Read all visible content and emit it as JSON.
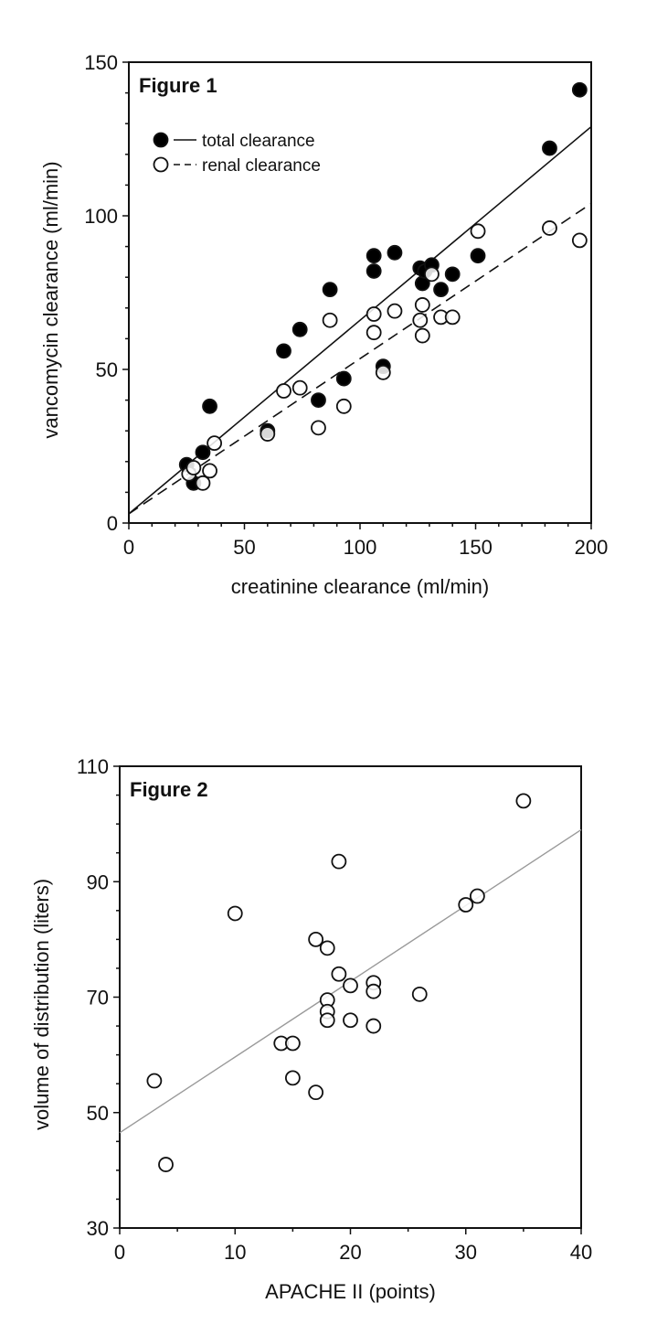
{
  "chart_data": [
    {
      "type": "scatter",
      "title": "Figure 1",
      "xlabel": "creatinine clearance (ml/min)",
      "ylabel": "vancomycin clearance (ml/min)",
      "xlim": [
        0,
        200
      ],
      "ylim": [
        0,
        150
      ],
      "xticks": [
        0,
        50,
        100,
        150,
        200
      ],
      "yticks": [
        0,
        50,
        100,
        150
      ],
      "xminor": 10,
      "yminor": 10,
      "grid": false,
      "legend_position": "top-left",
      "series": [
        {
          "name": "total clearance",
          "marker": "filled-circle",
          "line": "solid",
          "fit": [
            [
              0,
              3
            ],
            [
              200,
              129
            ]
          ],
          "points": [
            [
              25,
              19
            ],
            [
              28,
              13
            ],
            [
              32,
              23
            ],
            [
              35,
              38
            ],
            [
              60,
              30
            ],
            [
              67,
              56
            ],
            [
              74,
              63
            ],
            [
              87,
              76
            ],
            [
              82,
              40
            ],
            [
              93,
              47
            ],
            [
              106,
              87
            ],
            [
              106,
              82
            ],
            [
              110,
              51
            ],
            [
              115,
              88
            ],
            [
              126,
              83
            ],
            [
              127,
              78
            ],
            [
              128,
              82
            ],
            [
              131,
              84
            ],
            [
              135,
              76
            ],
            [
              140,
              81
            ],
            [
              151,
              87
            ],
            [
              182,
              122
            ],
            [
              195,
              141
            ]
          ]
        },
        {
          "name": "renal clearance",
          "marker": "open-circle",
          "line": "dashed",
          "fit": [
            [
              0,
              3
            ],
            [
              200,
              104
            ]
          ],
          "points": [
            [
              26,
              16
            ],
            [
              28,
              18
            ],
            [
              32,
              13
            ],
            [
              35,
              17
            ],
            [
              37,
              26
            ],
            [
              60,
              29
            ],
            [
              67,
              43
            ],
            [
              74,
              44
            ],
            [
              87,
              66
            ],
            [
              82,
              31
            ],
            [
              93,
              38
            ],
            [
              106,
              68
            ],
            [
              106,
              62
            ],
            [
              110,
              49
            ],
            [
              115,
              69
            ],
            [
              126,
              66
            ],
            [
              127,
              71
            ],
            [
              127,
              61
            ],
            [
              131,
              81
            ],
            [
              135,
              67
            ],
            [
              140,
              67
            ],
            [
              151,
              95
            ],
            [
              182,
              96
            ],
            [
              195,
              92
            ]
          ]
        }
      ]
    },
    {
      "type": "scatter",
      "title": "Figure 2",
      "xlabel": "APACHE II (points)",
      "ylabel": "volume of distribution (liters)",
      "xlim": [
        0,
        40
      ],
      "ylim": [
        30,
        110
      ],
      "xticks": [
        0,
        10,
        20,
        30,
        40
      ],
      "yticks": [
        30,
        50,
        70,
        90,
        110
      ],
      "xminor": 5,
      "yminor": 5,
      "grid": false,
      "series": [
        {
          "name": "volume of distribution",
          "marker": "open-circle",
          "line": "solid-gray",
          "fit": [
            [
              0,
              46.5
            ],
            [
              40,
              99
            ]
          ],
          "points": [
            [
              3,
              55.5
            ],
            [
              4,
              41
            ],
            [
              10,
              84.5
            ],
            [
              14,
              62
            ],
            [
              15,
              62
            ],
            [
              15,
              56
            ],
            [
              17,
              53.5
            ],
            [
              17,
              80
            ],
            [
              18,
              78.5
            ],
            [
              18,
              69.5
            ],
            [
              18,
              67.5
            ],
            [
              18,
              66
            ],
            [
              19,
              93.5
            ],
            [
              19,
              74
            ],
            [
              20,
              72
            ],
            [
              20,
              66
            ],
            [
              22,
              72.5
            ],
            [
              22,
              71
            ],
            [
              22,
              65
            ],
            [
              26,
              70.5
            ],
            [
              30,
              86
            ],
            [
              31,
              87.5
            ],
            [
              35,
              104
            ]
          ]
        }
      ]
    }
  ]
}
